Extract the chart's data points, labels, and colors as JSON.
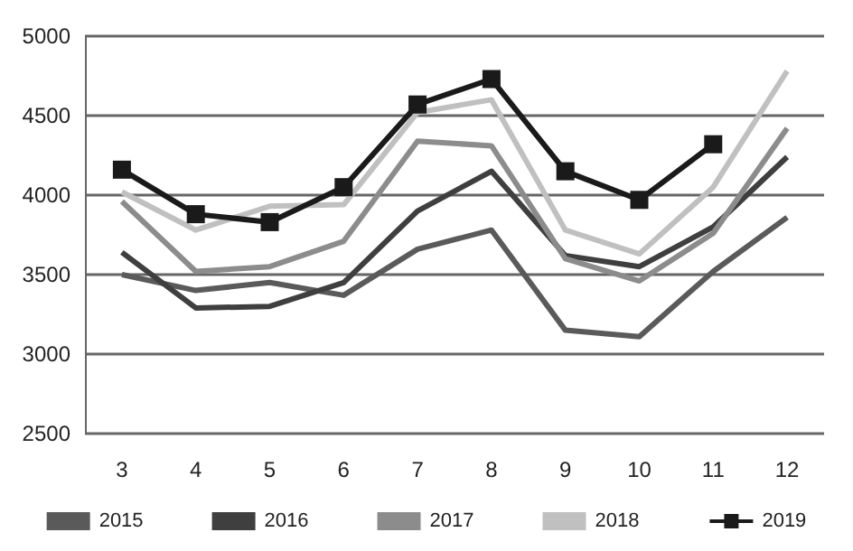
{
  "chart_data": {
    "type": "line",
    "categories": [
      "3",
      "4",
      "5",
      "6",
      "7",
      "8",
      "9",
      "10",
      "11",
      "12"
    ],
    "ylim": [
      2500,
      5000
    ],
    "yticks": [
      2500,
      3000,
      3500,
      4000,
      4500,
      5000
    ],
    "grid": "y",
    "legend": "bottom",
    "marker": "none",
    "series": [
      {
        "name": "2015",
        "color": "#5a5a5a",
        "values": [
          3500,
          3400,
          3450,
          3370,
          3660,
          3780,
          3150,
          3110,
          3520,
          3860
        ]
      },
      {
        "name": "2016",
        "color": "#3f3f3f",
        "values": [
          3640,
          3290,
          3300,
          3450,
          3900,
          4150,
          3620,
          3550,
          3800,
          4240
        ]
      },
      {
        "name": "2017",
        "color": "#8c8c8c",
        "values": [
          3960,
          3520,
          3550,
          3710,
          4340,
          4310,
          3600,
          3460,
          3760,
          4420
        ]
      },
      {
        "name": "2018",
        "color": "#c0c0c0",
        "values": [
          4020,
          3780,
          3930,
          3940,
          4520,
          4600,
          3780,
          3630,
          4050,
          4780
        ]
      },
      {
        "name": "2019",
        "color": "#1a1a1a",
        "marker": "square",
        "values": [
          4160,
          3880,
          3830,
          4050,
          4570,
          4730,
          4150,
          3970,
          4320,
          null
        ]
      }
    ]
  }
}
